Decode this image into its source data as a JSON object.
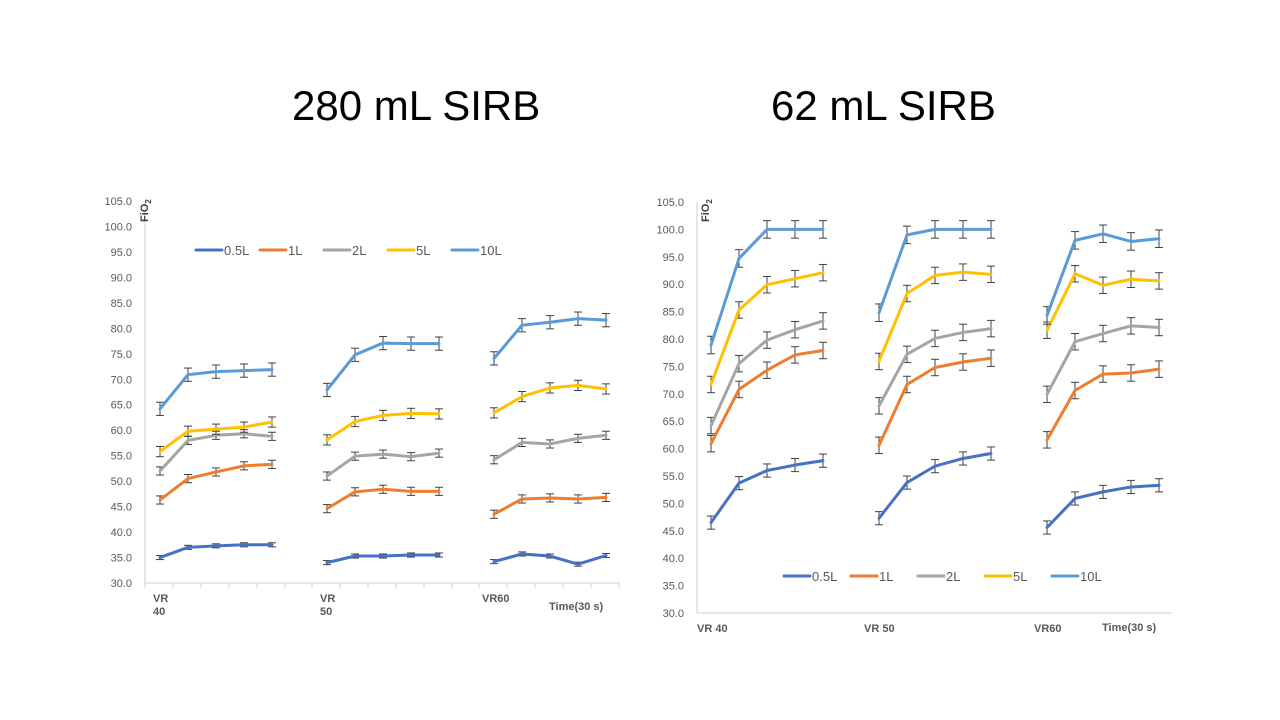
{
  "titles": {
    "left": "280 mL SIRB",
    "right": "62 mL SIRB"
  },
  "chart_data": [
    {
      "type": "line",
      "title": "280 mL SIRB",
      "ylabel_main": "FiO",
      "ylabel_sub": "2",
      "xlabel": "Time(30 s)",
      "ylim": [
        30,
        105
      ],
      "yticks": [
        "105.0",
        "100.0",
        "95.0",
        "90.0",
        "85.0",
        "80.0",
        "75.0",
        "70.0",
        "65.0",
        "60.0",
        "55.0",
        "50.0",
        "45.0",
        "40.0",
        "35.0",
        "30.0"
      ],
      "groups": [
        {
          "label_lines": [
            "VR",
            "40"
          ],
          "x": [
            1,
            2,
            3,
            4,
            5
          ]
        },
        {
          "label_lines": [
            "VR",
            "50"
          ],
          "x": [
            1,
            2,
            3,
            4,
            5
          ]
        },
        {
          "label_lines": [
            "VR60"
          ],
          "x": [
            1,
            2,
            3,
            4,
            5
          ]
        }
      ],
      "legend_position": "top-left",
      "series": [
        {
          "name": "0.5L",
          "color": "#4472C4",
          "values": [
            [
              35.0,
              37.0,
              37.3,
              37.5,
              37.5
            ],
            [
              34.0,
              35.3,
              35.3,
              35.5,
              35.5
            ],
            [
              34.2,
              35.7,
              35.3,
              33.7,
              35.4
            ]
          ],
          "errors": [
            [
              0.4,
              0.4,
              0.4,
              0.4,
              0.4
            ],
            [
              0.4,
              0.4,
              0.4,
              0.4,
              0.4
            ],
            [
              0.4,
              0.4,
              0.4,
              0.4,
              0.4
            ]
          ]
        },
        {
          "name": "1L",
          "color": "#ED7D31",
          "values": [
            [
              46.3,
              50.5,
              51.8,
              53.0,
              53.3
            ],
            [
              44.6,
              47.9,
              48.4,
              48.0,
              48.0
            ],
            [
              43.5,
              46.5,
              46.7,
              46.5,
              46.8
            ]
          ],
          "errors": [
            [
              0.8,
              0.8,
              0.8,
              0.8,
              0.8
            ],
            [
              0.8,
              0.8,
              0.8,
              0.8,
              0.8
            ],
            [
              0.8,
              0.8,
              0.8,
              0.8,
              0.8
            ]
          ]
        },
        {
          "name": "2L",
          "color": "#A5A5A5",
          "values": [
            [
              52.0,
              58.0,
              59.0,
              59.3,
              58.8
            ],
            [
              51.0,
              54.9,
              55.3,
              54.8,
              55.5
            ],
            [
              54.2,
              57.6,
              57.3,
              58.4,
              59.0
            ]
          ],
          "errors": [
            [
              0.8,
              0.8,
              0.8,
              0.8,
              0.8
            ],
            [
              0.8,
              0.8,
              0.8,
              0.8,
              0.8
            ],
            [
              0.8,
              0.8,
              0.8,
              0.8,
              0.8
            ]
          ]
        },
        {
          "name": "5L",
          "color": "#FFC000",
          "values": [
            [
              55.8,
              59.8,
              60.2,
              60.6,
              61.6
            ],
            [
              58.1,
              61.7,
              62.9,
              63.3,
              63.2
            ],
            [
              63.4,
              66.6,
              68.3,
              68.8,
              68.1
            ]
          ],
          "errors": [
            [
              1.0,
              1.0,
              1.0,
              1.0,
              1.0
            ],
            [
              1.0,
              1.0,
              1.0,
              1.0,
              1.0
            ],
            [
              1.0,
              1.0,
              1.0,
              1.0,
              1.0
            ]
          ]
        },
        {
          "name": "10L",
          "color": "#5B9BD5",
          "values": [
            [
              64.2,
              70.9,
              71.5,
              71.7,
              71.9
            ],
            [
              67.9,
              74.8,
              77.1,
              77.0,
              77.0
            ],
            [
              74.1,
              80.6,
              81.2,
              81.9,
              81.6
            ]
          ],
          "errors": [
            [
              1.3,
              1.3,
              1.3,
              1.3,
              1.3
            ],
            [
              1.3,
              1.3,
              1.3,
              1.3,
              1.3
            ],
            [
              1.3,
              1.3,
              1.3,
              1.3,
              1.3
            ]
          ]
        }
      ]
    },
    {
      "type": "line",
      "title": "62 mL SIRB",
      "ylabel_main": "FiO",
      "ylabel_sub": "2",
      "xlabel": "Time(30 s)",
      "ylim": [
        30,
        105
      ],
      "yticks": [
        "105.0",
        "100.0",
        "95.0",
        "90.0",
        "85.0",
        "80.0",
        "75.0",
        "70.0",
        "65.0",
        "60.0",
        "55.0",
        "50.0",
        "45.0",
        "40.0",
        "35.0",
        "30.0"
      ],
      "groups": [
        {
          "label_lines": [
            "VR 40"
          ],
          "x": [
            1,
            2,
            3,
            4,
            5
          ]
        },
        {
          "label_lines": [
            "VR 50"
          ],
          "x": [
            1,
            2,
            3,
            4,
            5
          ]
        },
        {
          "label_lines": [
            "VR60"
          ],
          "x": [
            1,
            2,
            3,
            4,
            5
          ]
        }
      ],
      "legend_position": "bottom",
      "series": [
        {
          "name": "0.5L",
          "color": "#4472C4",
          "values": [
            [
              46.5,
              53.7,
              56.0,
              57.0,
              57.8
            ],
            [
              47.3,
              53.8,
              56.8,
              58.2,
              59.1
            ],
            [
              45.6,
              50.9,
              52.1,
              53.0,
              53.3
            ]
          ],
          "errors": [
            [
              1.2,
              1.2,
              1.2,
              1.2,
              1.2
            ],
            [
              1.2,
              1.2,
              1.2,
              1.2,
              1.2
            ],
            [
              1.2,
              1.2,
              1.2,
              1.2,
              1.2
            ]
          ]
        },
        {
          "name": "1L",
          "color": "#ED7D31",
          "values": [
            [
              60.9,
              70.8,
              74.3,
              77.1,
              77.9
            ],
            [
              60.6,
              71.7,
              74.8,
              75.8,
              76.5
            ],
            [
              61.6,
              70.6,
              73.6,
              73.8,
              74.5
            ]
          ],
          "errors": [
            [
              1.5,
              1.5,
              1.5,
              1.5,
              1.5
            ],
            [
              1.5,
              1.5,
              1.5,
              1.5,
              1.5
            ],
            [
              1.5,
              1.5,
              1.5,
              1.5,
              1.5
            ]
          ]
        },
        {
          "name": "2L",
          "color": "#A5A5A5",
          "values": [
            [
              64.2,
              75.5,
              79.8,
              81.7,
              83.3
            ],
            [
              67.8,
              77.2,
              80.1,
              81.2,
              81.9
            ],
            [
              69.9,
              79.5,
              81.0,
              82.4,
              82.1
            ]
          ],
          "errors": [
            [
              1.5,
              1.5,
              1.5,
              1.5,
              1.5
            ],
            [
              1.5,
              1.5,
              1.5,
              1.5,
              1.5
            ],
            [
              1.5,
              1.5,
              1.5,
              1.5,
              1.5
            ]
          ]
        },
        {
          "name": "5L",
          "color": "#FFC000",
          "values": [
            [
              71.7,
              85.3,
              89.9,
              91.0,
              92.1
            ],
            [
              75.9,
              88.3,
              91.6,
              92.2,
              91.8
            ],
            [
              81.6,
              91.9,
              89.8,
              90.9,
              90.6
            ]
          ],
          "errors": [
            [
              1.5,
              1.5,
              1.5,
              1.5,
              1.5
            ],
            [
              1.5,
              1.5,
              1.5,
              1.5,
              1.5
            ],
            [
              1.5,
              1.5,
              1.5,
              1.5,
              1.5
            ]
          ]
        },
        {
          "name": "10L",
          "color": "#5B9BD5",
          "values": [
            [
              78.9,
              94.7,
              100.0,
              100.0,
              100.0
            ],
            [
              84.8,
              99.0,
              100.0,
              100.0,
              100.0
            ],
            [
              84.3,
              98.0,
              99.2,
              97.8,
              98.3
            ]
          ],
          "errors": [
            [
              1.6,
              1.6,
              1.6,
              1.6,
              1.6
            ],
            [
              1.6,
              1.6,
              1.6,
              1.6,
              1.6
            ],
            [
              1.6,
              1.6,
              1.6,
              1.6,
              1.6
            ]
          ]
        }
      ]
    }
  ]
}
